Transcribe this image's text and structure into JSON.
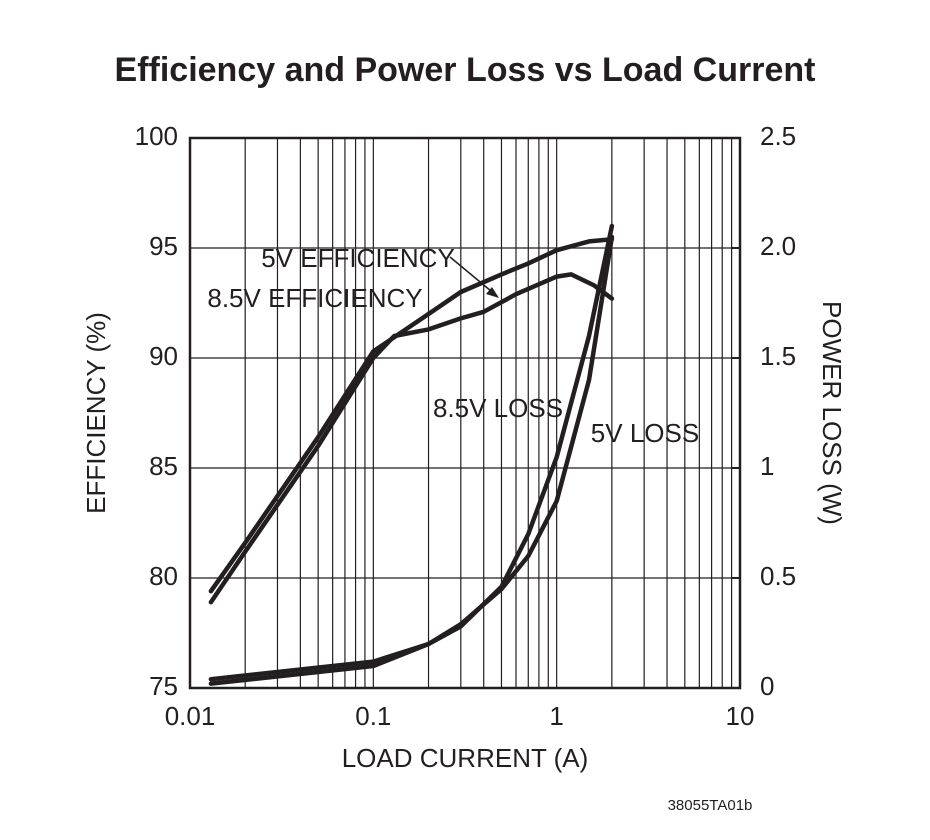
{
  "chart_data": {
    "type": "line",
    "title": "Efficiency and Power Loss vs Load Current",
    "x_label": "LOAD CURRENT (A)",
    "y_label": "EFFICIENCY (%)",
    "y2_label": "POWER LOSS (W)",
    "footnote": "38055TA01b",
    "log_x": true,
    "grid": true,
    "xlim": [
      0.01,
      10
    ],
    "xticks": [
      0.01,
      0.1,
      1,
      10
    ],
    "ylim": [
      75,
      100
    ],
    "yticks": [
      75,
      80,
      85,
      90,
      95,
      100
    ],
    "y2lim": [
      0,
      2.5
    ],
    "y2ticks": [
      0,
      0.5,
      1,
      1.5,
      {
        "value": 2,
        "label": "2.0"
      },
      2.5
    ],
    "series": [
      {
        "name": "5V EFFICIENCY",
        "color": "#231f20",
        "axis": "y",
        "x": [
          0.013,
          0.02,
          0.05,
          0.1,
          0.2,
          0.3,
          0.5,
          0.7,
          1,
          1.5,
          2
        ],
        "values": [
          79.4,
          81.6,
          86.4,
          90.3,
          92.0,
          93.0,
          93.8,
          94.3,
          94.9,
          95.3,
          95.4
        ]
      },
      {
        "name": "8.5V EFFICIENCY",
        "color": "#231f20",
        "axis": "y",
        "x": [
          0.013,
          0.02,
          0.05,
          0.1,
          0.13,
          0.2,
          0.3,
          0.4,
          0.6,
          1,
          1.2,
          1.6,
          2
        ],
        "values": [
          78.9,
          81.2,
          86.0,
          90.0,
          91.0,
          91.3,
          91.8,
          92.1,
          92.9,
          93.7,
          93.8,
          93.3,
          92.7
        ]
      },
      {
        "name": "8.5V LOSS",
        "color": "#231f20",
        "axis": "y2",
        "x": [
          0.013,
          0.1,
          0.2,
          0.3,
          0.5,
          0.7,
          1,
          1.5,
          2
        ],
        "values": [
          0.04,
          0.12,
          0.2,
          0.28,
          0.46,
          0.7,
          1.05,
          1.6,
          2.1
        ]
      },
      {
        "name": "5V LOSS",
        "color": "#231f20",
        "axis": "y2",
        "x": [
          0.013,
          0.1,
          0.2,
          0.3,
          0.5,
          0.7,
          1,
          1.5,
          2
        ],
        "values": [
          0.02,
          0.1,
          0.2,
          0.29,
          0.45,
          0.6,
          0.85,
          1.4,
          2.05
        ]
      }
    ]
  }
}
